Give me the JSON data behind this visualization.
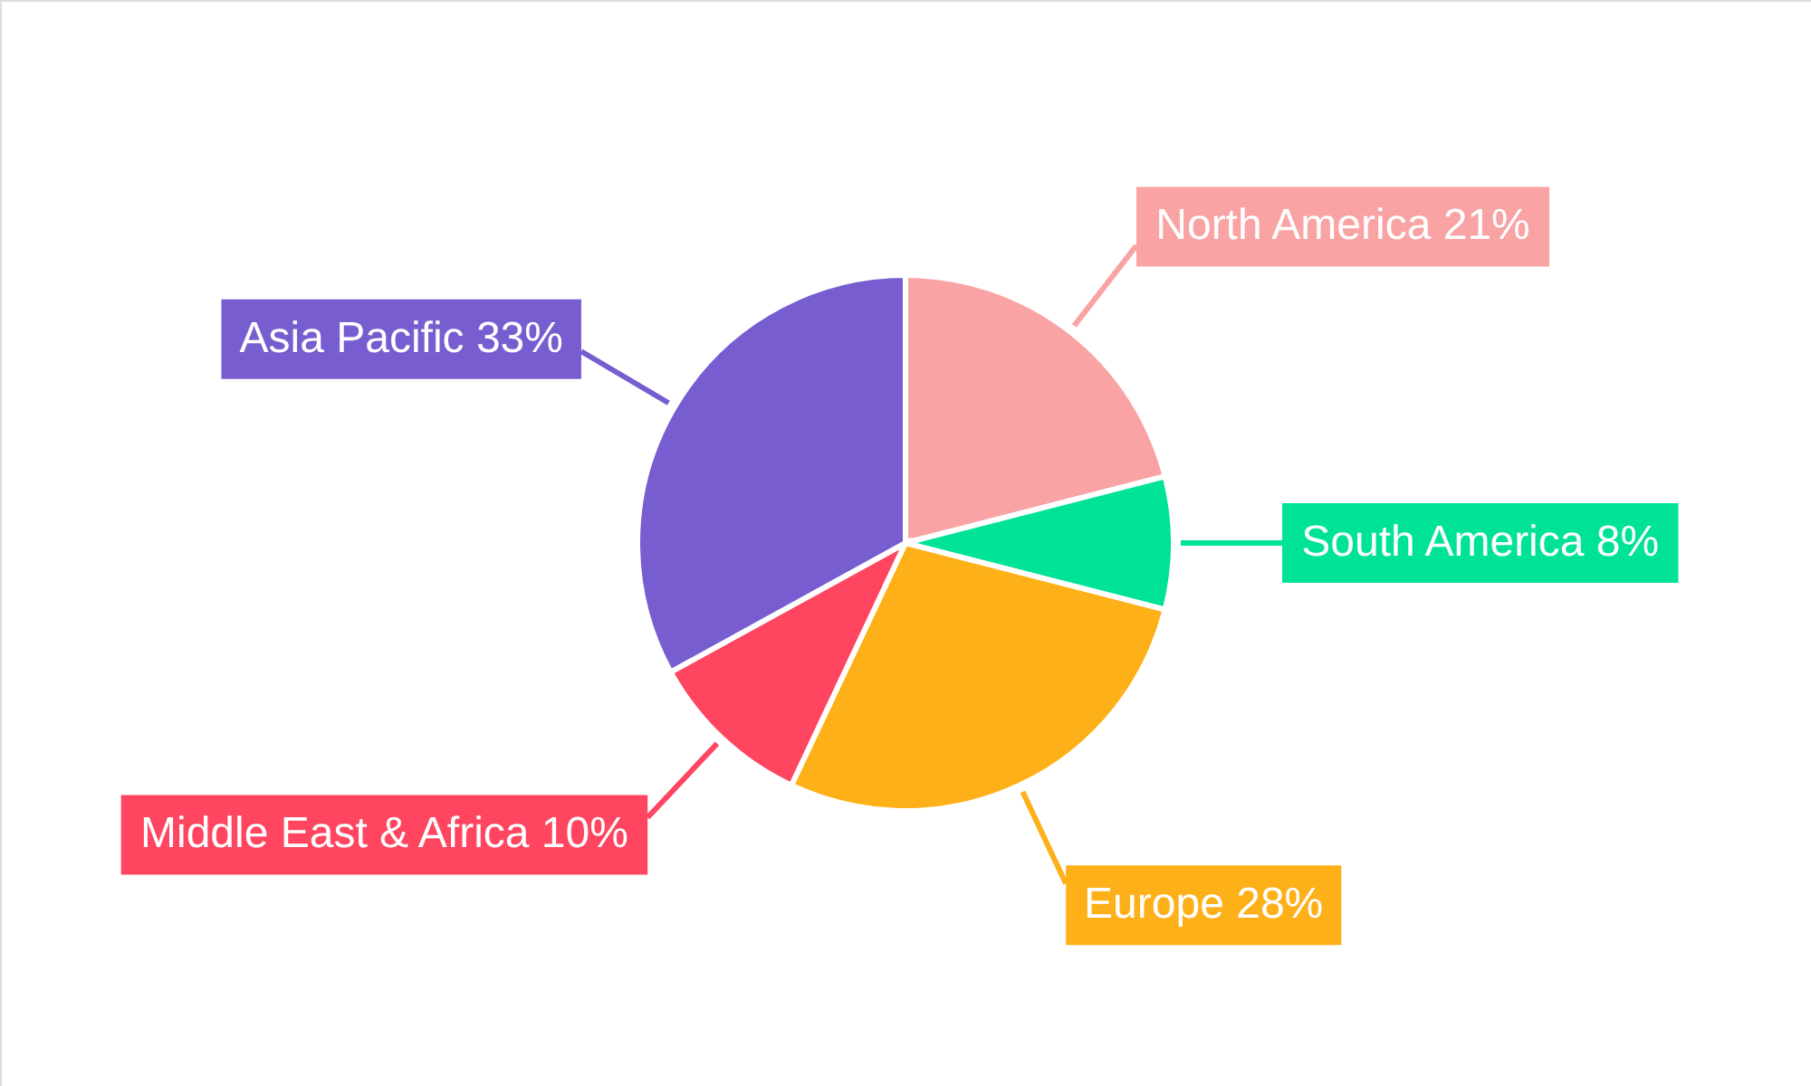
{
  "chart_data": {
    "type": "pie",
    "categories": [
      "North America",
      "South America",
      "Europe",
      "Middle East & Africa",
      "Asia Pacific"
    ],
    "values": [
      21,
      8,
      28,
      10,
      33
    ],
    "value_labels": [
      "21%",
      "8%",
      "28%",
      "10%",
      "33%"
    ],
    "colors": [
      "#f9a3a4",
      "#00e396",
      "#feb019",
      "#ff4560",
      "#775dd0"
    ]
  }
}
